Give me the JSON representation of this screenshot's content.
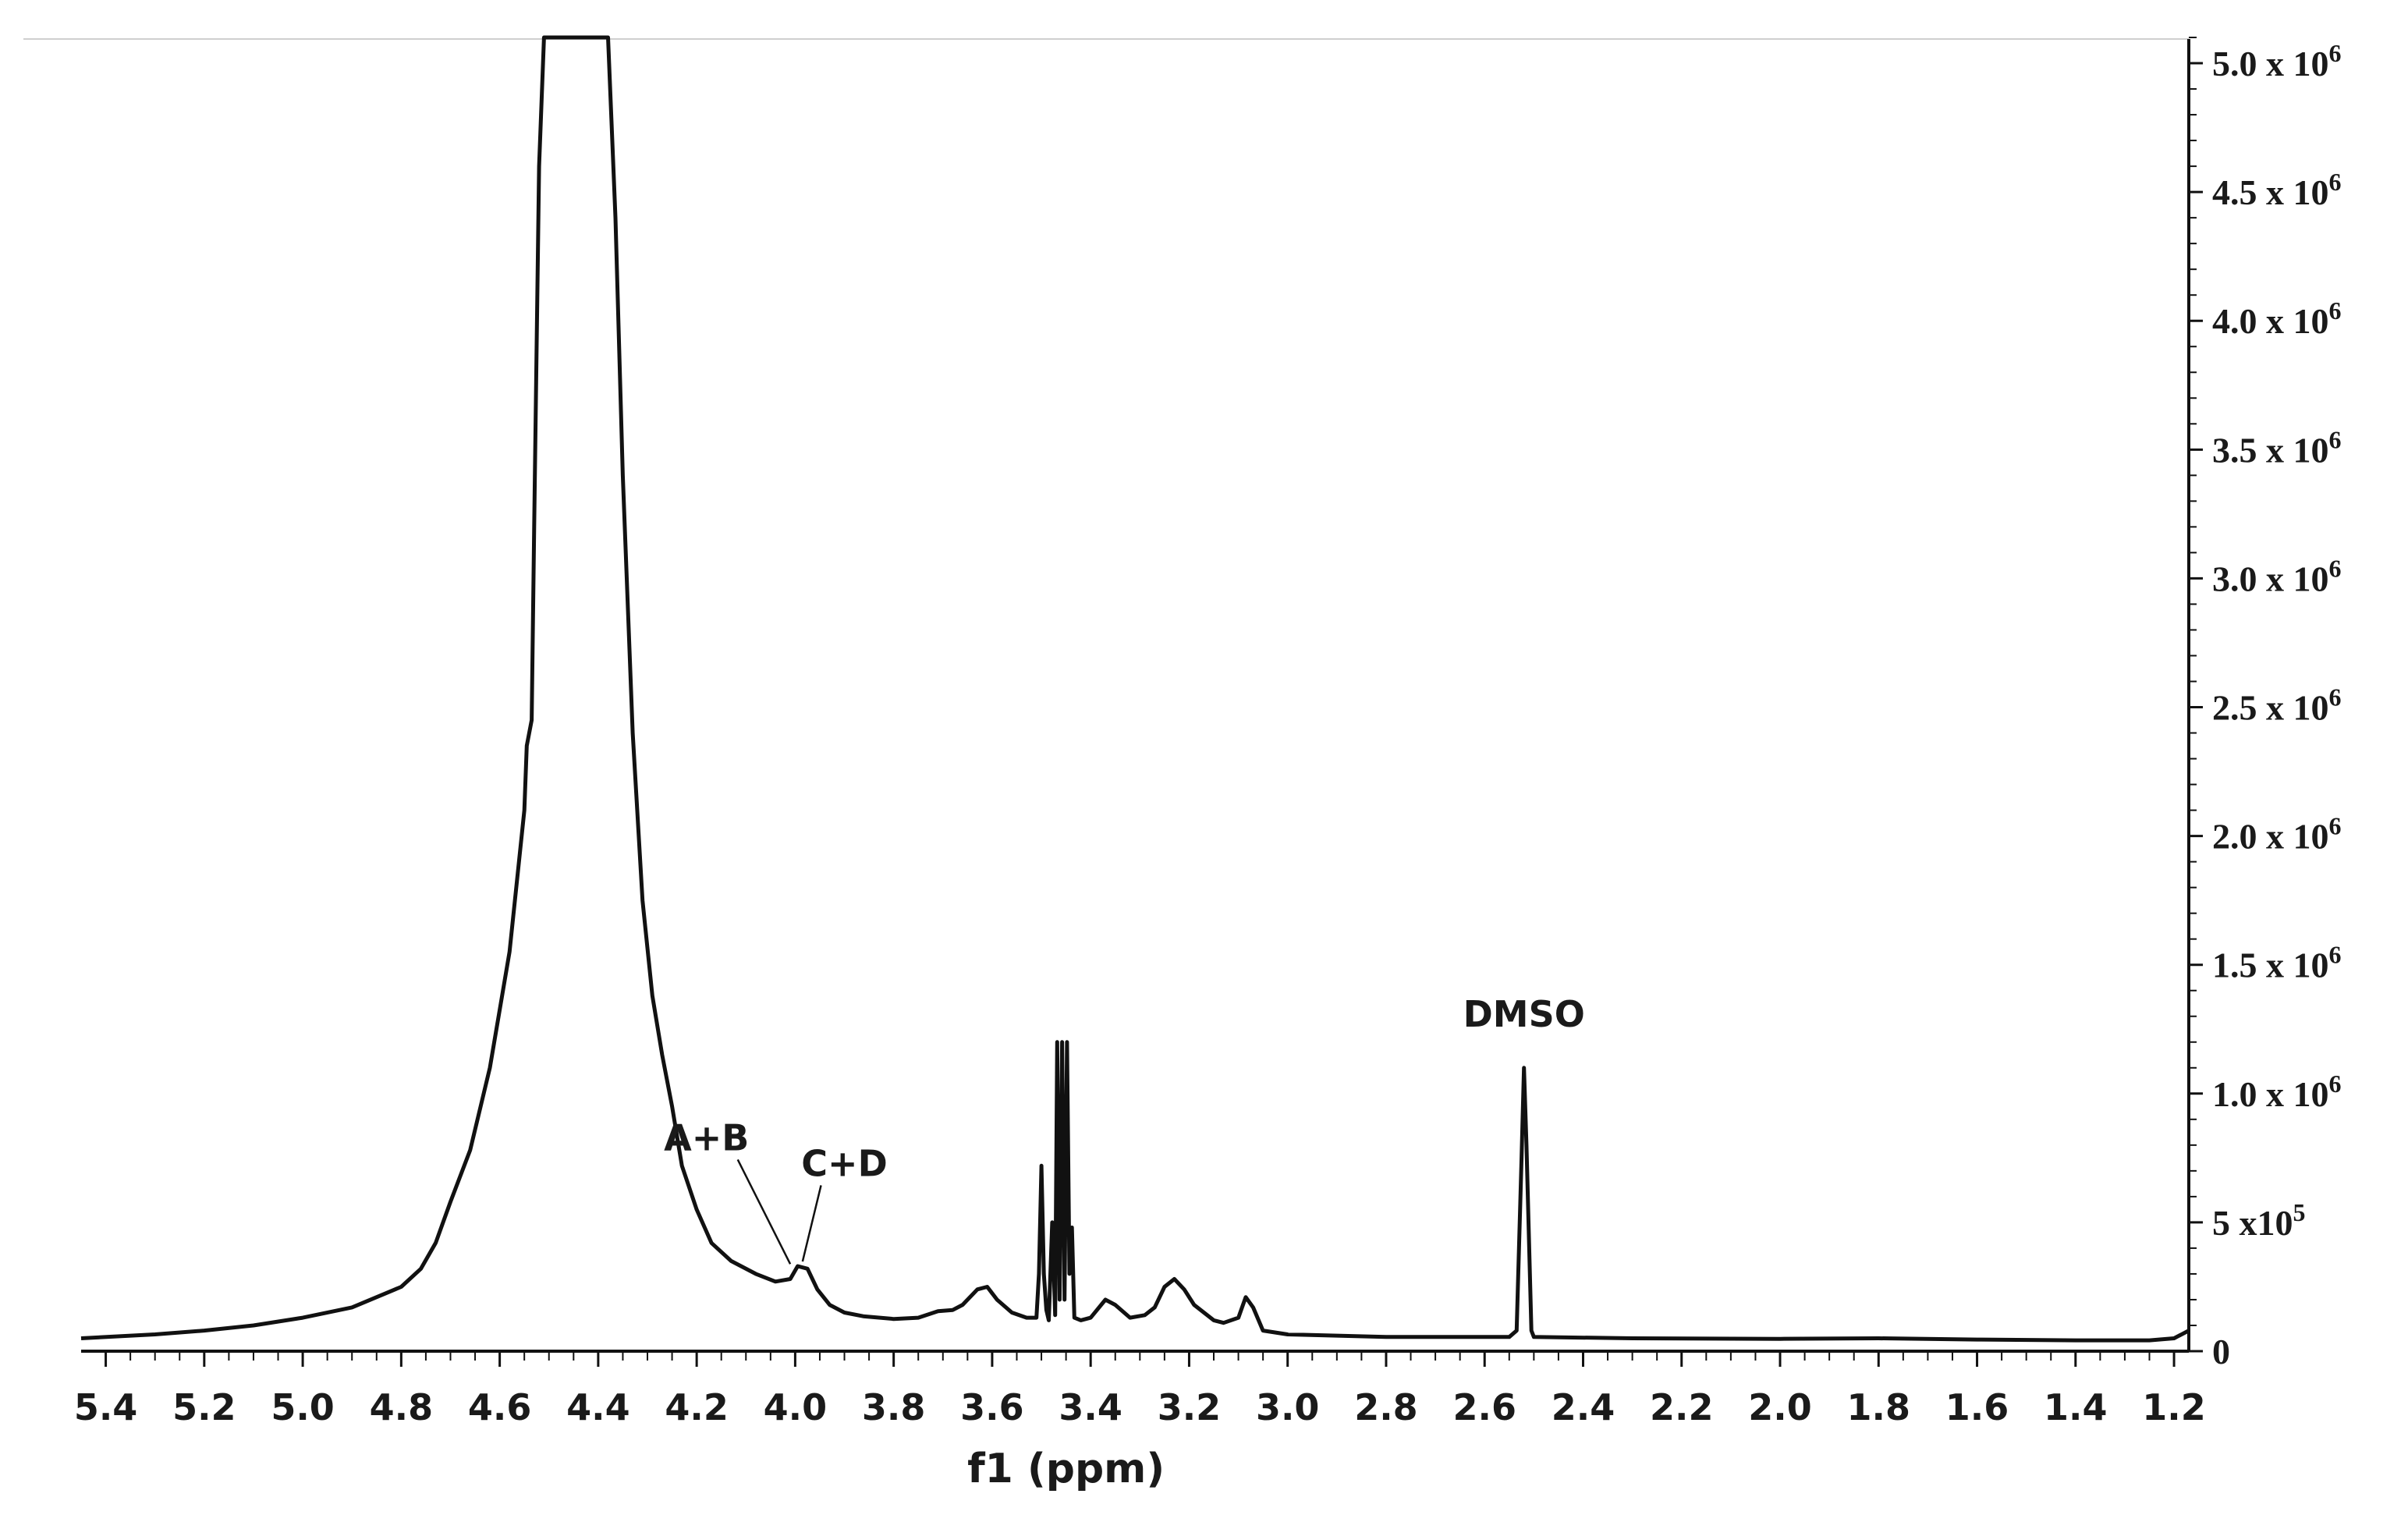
{
  "chart_data": {
    "type": "line",
    "title": "",
    "xlabel": "f1 (ppm)",
    "ylabel": "",
    "x_reversed": true,
    "xlim": [
      5.45,
      1.17
    ],
    "ylim": [
      0,
      5.1
    ],
    "y_unit_note": "values in units of 10^6",
    "x_ticks": [
      "5.4",
      "5.2",
      "5.0",
      "4.8",
      "4.6",
      "4.4",
      "4.2",
      "4.0",
      "3.8",
      "3.6",
      "3.4",
      "3.2",
      "3.0",
      "2.8",
      "2.6",
      "2.4",
      "2.2",
      "2.0",
      "1.8",
      "1.6",
      "1.4",
      "1.2"
    ],
    "y_ticks": [
      {
        "value": 0,
        "label": "0",
        "sup": ""
      },
      {
        "value": 0.5,
        "label": "5 x10",
        "sup": "5"
      },
      {
        "value": 1.0,
        "label": "1.0 x 10",
        "sup": "6"
      },
      {
        "value": 1.5,
        "label": "1.5 x 10",
        "sup": "6"
      },
      {
        "value": 2.0,
        "label": "2.0 x 10",
        "sup": "6"
      },
      {
        "value": 2.5,
        "label": "2.5 x 10",
        "sup": "6"
      },
      {
        "value": 3.0,
        "label": "3.0 x 10",
        "sup": "6"
      },
      {
        "value": 3.5,
        "label": "3.5 x 10",
        "sup": "6"
      },
      {
        "value": 4.0,
        "label": "4.0 x 10",
        "sup": "6"
      },
      {
        "value": 4.5,
        "label": "4.5 x 10",
        "sup": "6"
      },
      {
        "value": 5.0,
        "label": "5.0 x 10",
        "sup": "6"
      }
    ],
    "series": [
      {
        "values": [
          [
            5.45,
            0.05
          ],
          [
            5.3,
            0.065
          ],
          [
            5.2,
            0.08
          ],
          [
            5.1,
            0.1
          ],
          [
            5.0,
            0.13
          ],
          [
            4.9,
            0.17
          ],
          [
            4.8,
            0.25
          ],
          [
            4.76,
            0.32
          ],
          [
            4.73,
            0.42
          ],
          [
            4.7,
            0.58
          ],
          [
            4.66,
            0.78
          ],
          [
            4.62,
            1.1
          ],
          [
            4.58,
            1.55
          ],
          [
            4.55,
            2.1
          ],
          [
            4.545,
            2.35
          ],
          [
            4.535,
            2.45
          ],
          [
            4.53,
            3.2
          ],
          [
            4.52,
            4.6
          ],
          [
            4.51,
            5.15
          ],
          [
            4.38,
            5.15
          ],
          [
            4.365,
            4.4
          ],
          [
            4.35,
            3.4
          ],
          [
            4.33,
            2.4
          ],
          [
            4.31,
            1.75
          ],
          [
            4.29,
            1.38
          ],
          [
            4.27,
            1.15
          ],
          [
            4.25,
            0.95
          ],
          [
            4.23,
            0.72
          ],
          [
            4.2,
            0.55
          ],
          [
            4.17,
            0.42
          ],
          [
            4.13,
            0.35
          ],
          [
            4.08,
            0.3
          ],
          [
            4.04,
            0.27
          ],
          [
            4.01,
            0.28
          ],
          [
            3.995,
            0.33
          ],
          [
            3.975,
            0.32
          ],
          [
            3.955,
            0.24
          ],
          [
            3.93,
            0.18
          ],
          [
            3.9,
            0.15
          ],
          [
            3.86,
            0.135
          ],
          [
            3.8,
            0.125
          ],
          [
            3.75,
            0.13
          ],
          [
            3.71,
            0.155
          ],
          [
            3.68,
            0.16
          ],
          [
            3.66,
            0.18
          ],
          [
            3.63,
            0.24
          ],
          [
            3.61,
            0.25
          ],
          [
            3.59,
            0.2
          ],
          [
            3.56,
            0.15
          ],
          [
            3.53,
            0.13
          ],
          [
            3.51,
            0.13
          ],
          [
            3.505,
            0.3
          ],
          [
            3.5,
            0.72
          ],
          [
            3.495,
            0.3
          ],
          [
            3.49,
            0.16
          ],
          [
            3.485,
            0.12
          ],
          [
            3.478,
            0.5
          ],
          [
            3.472,
            0.14
          ],
          [
            3.468,
            1.2
          ],
          [
            3.463,
            0.2
          ],
          [
            3.458,
            1.2
          ],
          [
            3.453,
            0.2
          ],
          [
            3.448,
            1.2
          ],
          [
            3.443,
            0.3
          ],
          [
            3.438,
            0.48
          ],
          [
            3.433,
            0.13
          ],
          [
            3.42,
            0.12
          ],
          [
            3.4,
            0.13
          ],
          [
            3.37,
            0.2
          ],
          [
            3.35,
            0.18
          ],
          [
            3.32,
            0.13
          ],
          [
            3.29,
            0.14
          ],
          [
            3.27,
            0.17
          ],
          [
            3.25,
            0.25
          ],
          [
            3.23,
            0.28
          ],
          [
            3.21,
            0.24
          ],
          [
            3.19,
            0.18
          ],
          [
            3.15,
            0.12
          ],
          [
            3.13,
            0.11
          ],
          [
            3.1,
            0.13
          ],
          [
            3.085,
            0.21
          ],
          [
            3.07,
            0.17
          ],
          [
            3.05,
            0.08
          ],
          [
            3.0,
            0.065
          ],
          [
            2.8,
            0.055
          ],
          [
            2.6,
            0.055
          ],
          [
            2.55,
            0.055
          ],
          [
            2.535,
            0.08
          ],
          [
            2.525,
            0.75
          ],
          [
            2.52,
            1.1
          ],
          [
            2.515,
            0.8
          ],
          [
            2.505,
            0.08
          ],
          [
            2.5,
            0.055
          ],
          [
            2.3,
            0.05
          ],
          [
            2.0,
            0.048
          ],
          [
            1.8,
            0.05
          ],
          [
            1.6,
            0.045
          ],
          [
            1.4,
            0.042
          ],
          [
            1.25,
            0.042
          ],
          [
            1.2,
            0.05
          ],
          [
            1.17,
            0.08
          ]
        ]
      }
    ],
    "annotations": [
      {
        "text": "A+B",
        "x": 4.01,
        "y": 0.32,
        "label_x": 4.18,
        "label_y": 0.78
      },
      {
        "text": "C+D",
        "x": 3.985,
        "y": 0.33,
        "label_x": 3.9,
        "label_y": 0.68
      },
      {
        "text": "DMSO",
        "x": 2.52,
        "y": 1.1,
        "label_x": 2.52,
        "label_y": 1.26
      }
    ]
  }
}
